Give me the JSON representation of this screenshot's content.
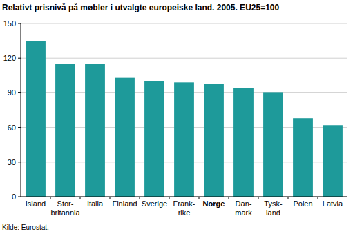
{
  "chart_data": {
    "type": "bar",
    "title": "Relativt prisnivå på møbler i utvalgte europeiske land. 2005. EU25=100",
    "source": "Kilde: Eurostat.",
    "categories": [
      "Island",
      "Stor-\nbritannia",
      "Italia",
      "Finland",
      "Sverige",
      "Frank-\nrike",
      "Norge",
      "Dan-\nmark",
      "Tysk-\nland",
      "Polen",
      "Latvia"
    ],
    "values": [
      135,
      115,
      115,
      103,
      100,
      99,
      98,
      94,
      90,
      68,
      62
    ],
    "color": "#1e9a9a",
    "ylim": [
      0,
      150
    ],
    "yticks": [
      0,
      30,
      60,
      90,
      120,
      150
    ],
    "grid": true
  }
}
